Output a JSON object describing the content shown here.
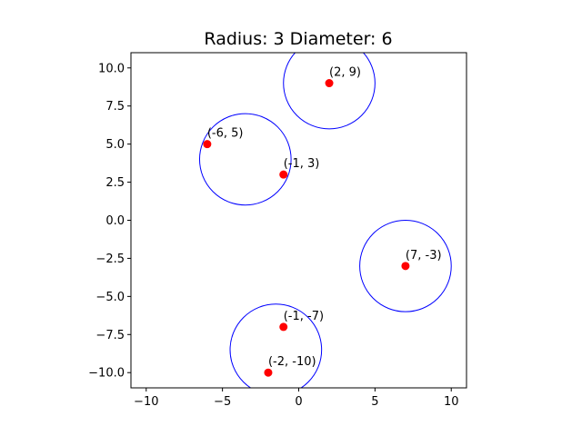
{
  "chart_data": {
    "type": "scatter",
    "title": "Radius: 3 Diameter: 6",
    "xlabel": "",
    "ylabel": "",
    "xlim": [
      -11,
      11
    ],
    "ylim": [
      -11,
      11
    ],
    "x_ticks": [
      -10,
      -5,
      0,
      5,
      10
    ],
    "y_ticks": [
      -10.0,
      -7.5,
      -5.0,
      -2.5,
      0.0,
      2.5,
      5.0,
      7.5,
      10.0
    ],
    "x_tick_labels": [
      "−10",
      "−5",
      "0",
      "5",
      "10"
    ],
    "y_tick_labels": [
      "−10.0",
      "−7.5",
      "−5.0",
      "−2.5",
      "0.0",
      "2.5",
      "5.0",
      "7.5",
      "10.0"
    ],
    "grid": false,
    "points": [
      {
        "x": 2,
        "y": 9,
        "label": "(2, 9)"
      },
      {
        "x": -6,
        "y": 5,
        "label": "(-6, 5)"
      },
      {
        "x": -1,
        "y": 3,
        "label": "(-1, 3)"
      },
      {
        "x": 7,
        "y": -3,
        "label": "(7, -3)"
      },
      {
        "x": -1,
        "y": -7,
        "label": "(-1, -7)"
      },
      {
        "x": -2,
        "y": -10,
        "label": "(-2, -10)"
      }
    ],
    "circles": [
      {
        "cx": 2,
        "cy": 9,
        "r": 3
      },
      {
        "cx": -3.5,
        "cy": 4,
        "r": 3
      },
      {
        "cx": 7,
        "cy": -3,
        "r": 3
      },
      {
        "cx": -1.5,
        "cy": -8.5,
        "r": 3
      }
    ],
    "colors": {
      "point": "#ff0000",
      "circle": "#0000ff",
      "axes": "#000000"
    }
  }
}
